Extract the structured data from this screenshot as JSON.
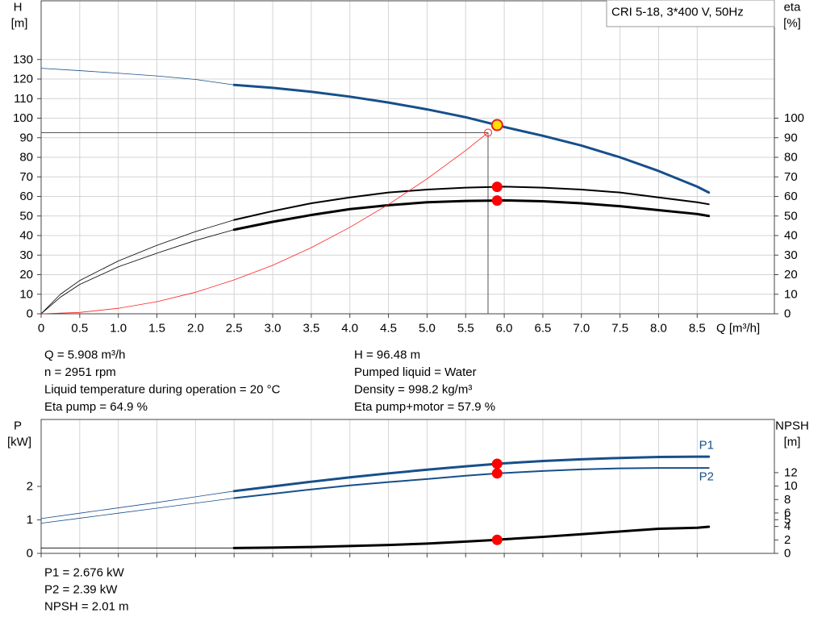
{
  "chart_data": [
    {
      "type": "line",
      "title": "CRI 5-18, 3*400 V, 50Hz",
      "y_label": [
        "H",
        "[m]"
      ],
      "y2_label": [
        "eta",
        "[%]"
      ],
      "x_label": "Q [m³/h]",
      "xlim": [
        0,
        9.5
      ],
      "xticks": [
        0,
        0.5,
        {
          "value": 1,
          "label": "1.0"
        },
        1.5,
        {
          "value": 2,
          "label": "2.0"
        },
        2.5,
        {
          "value": 3,
          "label": "3.0"
        },
        3.5,
        {
          "value": 4,
          "label": "4.0"
        },
        4.5,
        {
          "value": 5,
          "label": "5.0"
        },
        5.5,
        {
          "value": 6,
          "label": "6.0"
        },
        6.5,
        {
          "value": 7,
          "label": "7.0"
        },
        7.5,
        {
          "value": 8,
          "label": "8.0"
        },
        8.5
      ],
      "ylim": [
        0,
        160
      ],
      "yticks": [
        0,
        10,
        20,
        30,
        40,
        50,
        60,
        70,
        80,
        90,
        100,
        110,
        120,
        130
      ],
      "y2lim": [
        0,
        160
      ],
      "y2ticks": [
        0,
        10,
        20,
        30,
        40,
        50,
        60,
        70,
        80,
        90,
        100
      ],
      "grid": true,
      "series": [
        {
          "color": "#174f8a",
          "line_width": 0.8,
          "x": [
            0,
            0.5,
            1,
            1.5,
            2,
            2.5
          ],
          "values": [
            125.5,
            124.3,
            123,
            121.6,
            119.8,
            117
          ]
        },
        {
          "color": "#174f8a",
          "line_width": 3,
          "x": [
            2.5,
            3,
            3.5,
            4,
            4.5,
            5,
            5.5,
            5.908,
            6,
            6.5,
            7,
            7.5,
            8,
            8.5,
            8.65
          ],
          "values": [
            117,
            115.5,
            113.5,
            111,
            108,
            104.5,
            100.5,
            96.48,
            95.5,
            91,
            86,
            80,
            73,
            65,
            62
          ]
        },
        {
          "color": "#000000",
          "line_width": 0.8,
          "axis": "y2",
          "x": [
            0,
            0.25,
            0.5,
            1,
            1.5,
            2,
            2.5
          ],
          "values": [
            0,
            10,
            17,
            27,
            35,
            42,
            48
          ]
        },
        {
          "color": "#000000",
          "line_width": 2,
          "axis": "y2",
          "x": [
            2.5,
            3,
            3.5,
            4,
            4.5,
            5,
            5.5,
            5.908,
            6,
            6.5,
            7,
            7.5,
            8,
            8.5,
            8.65
          ],
          "values": [
            48,
            52.5,
            56.5,
            59.5,
            62,
            63.5,
            64.5,
            64.9,
            65,
            64.5,
            63.5,
            62,
            59.5,
            57,
            56
          ]
        },
        {
          "color": "#000000",
          "line_width": 0.8,
          "axis": "y2",
          "x": [
            0,
            0.25,
            0.5,
            1,
            1.5,
            2,
            2.5
          ],
          "values": [
            0,
            8.5,
            15,
            24,
            31,
            37.5,
            43
          ]
        },
        {
          "color": "#000000",
          "line_width": 3,
          "axis": "y2",
          "x": [
            2.5,
            3,
            3.5,
            4,
            4.5,
            5,
            5.5,
            5.908,
            6,
            6.5,
            7,
            7.5,
            8,
            8.5,
            8.65
          ],
          "values": [
            43,
            47,
            50.5,
            53.5,
            55.5,
            57,
            57.7,
            57.9,
            58,
            57.5,
            56.5,
            55,
            53,
            51,
            50
          ]
        },
        {
          "color": "#ff2020",
          "line_width": 0.8,
          "x": [
            0,
            0.5,
            1,
            1.5,
            2,
            2.5,
            3,
            3.5,
            4,
            4.5,
            5,
            5.5,
            5.79
          ],
          "values": [
            0,
            0.7,
            2.8,
            6.2,
            11,
            17.3,
            24.8,
            33.8,
            44.2,
            55.9,
            69,
            83.5,
            92.6
          ]
        }
      ],
      "crosshair": {
        "x": 5.79,
        "y": 92.6,
        "color": "#555555"
      },
      "points": [
        {
          "x": 5.79,
          "y": 92.6,
          "color": "#ff2020",
          "style": "open"
        },
        {
          "x": 5.908,
          "y": 96.48,
          "color": "#ffe000",
          "edge_color": "#e02020"
        },
        {
          "x": 5.908,
          "y": 64.9,
          "color": "#ff0000",
          "axis": "y2"
        },
        {
          "x": 5.908,
          "y": 57.9,
          "color": "#ff0000",
          "axis": "y2"
        }
      ]
    },
    {
      "type": "line",
      "sharex": true,
      "y_label": [
        "P",
        "[kW]"
      ],
      "y2_label": [
        "NPSH",
        "[m]"
      ],
      "ylim": [
        0,
        4
      ],
      "yticks": [
        0,
        1,
        2
      ],
      "y2lim": [
        0,
        19.9
      ],
      "y2ticks": [
        0,
        2,
        4,
        5,
        6,
        8,
        10,
        12
      ],
      "grid": "x",
      "series": [
        {
          "color": "#174f8a",
          "line_width": 0.8,
          "x": [
            0,
            0.5,
            1,
            1.5,
            2,
            2.5
          ],
          "values": [
            1.04,
            1.2,
            1.36,
            1.52,
            1.69,
            1.86
          ]
        },
        {
          "name": "P1",
          "label_position": "above",
          "color": "#174f8a",
          "line_width": 3,
          "x": [
            2.5,
            3,
            3.5,
            4,
            4.5,
            5,
            5.5,
            5.908,
            6,
            6.5,
            7,
            7.5,
            8,
            8.5,
            8.65
          ],
          "values": [
            1.86,
            2.0,
            2.14,
            2.27,
            2.39,
            2.5,
            2.6,
            2.676,
            2.69,
            2.76,
            2.81,
            2.85,
            2.88,
            2.89,
            2.89
          ]
        },
        {
          "color": "#174f8a",
          "line_width": 0.8,
          "x": [
            0,
            0.5,
            1,
            1.5,
            2,
            2.5
          ],
          "values": [
            0.9,
            1.05,
            1.2,
            1.35,
            1.5,
            1.65
          ]
        },
        {
          "name": "P2",
          "label_position": "below",
          "color": "#174f8a",
          "line_width": 2,
          "x": [
            2.5,
            3,
            3.5,
            4,
            4.5,
            5,
            5.5,
            5.908,
            6,
            6.5,
            7,
            7.5,
            8,
            8.5,
            8.65
          ],
          "values": [
            1.65,
            1.78,
            1.91,
            2.03,
            2.13,
            2.22,
            2.32,
            2.39,
            2.4,
            2.46,
            2.51,
            2.54,
            2.55,
            2.55,
            2.55
          ]
        },
        {
          "color": "#000000",
          "line_width": 0.8,
          "axis": "y2",
          "x": [
            0,
            2.5
          ],
          "values": [
            0.8,
            0.8
          ]
        },
        {
          "color": "#000000",
          "line_width": 3,
          "axis": "y2",
          "x": [
            2.5,
            3,
            3.5,
            4,
            4.5,
            5,
            5.5,
            5.908,
            6,
            6.5,
            7,
            7.5,
            8,
            8.5,
            8.65
          ],
          "values": [
            0.8,
            0.85,
            0.95,
            1.1,
            1.25,
            1.45,
            1.75,
            2.01,
            2.1,
            2.45,
            2.85,
            3.25,
            3.65,
            3.8,
            3.95
          ]
        }
      ],
      "points": [
        {
          "x": 5.908,
          "y": 2.676,
          "color": "#ff0000"
        },
        {
          "x": 5.908,
          "y": 2.39,
          "color": "#ff0000"
        },
        {
          "x": 5.908,
          "y": 2.01,
          "color": "#ff0000",
          "axis": "y2"
        }
      ]
    }
  ],
  "operating_point": {
    "left": [
      "Q = 5.908 m³/h",
      "n = 2951 rpm",
      "Liquid temperature during operation = 20 °C",
      "Eta pump = 64.9 %"
    ],
    "right": [
      "H = 96.48 m",
      "Pumped liquid = Water",
      "Density = 998.2 kg/m³",
      "Eta pump+motor = 57.9 %"
    ]
  },
  "power_readout": [
    "P1 = 2.676 kW",
    "P2 = 2.39 kW",
    "NPSH = 2.01 m"
  ]
}
